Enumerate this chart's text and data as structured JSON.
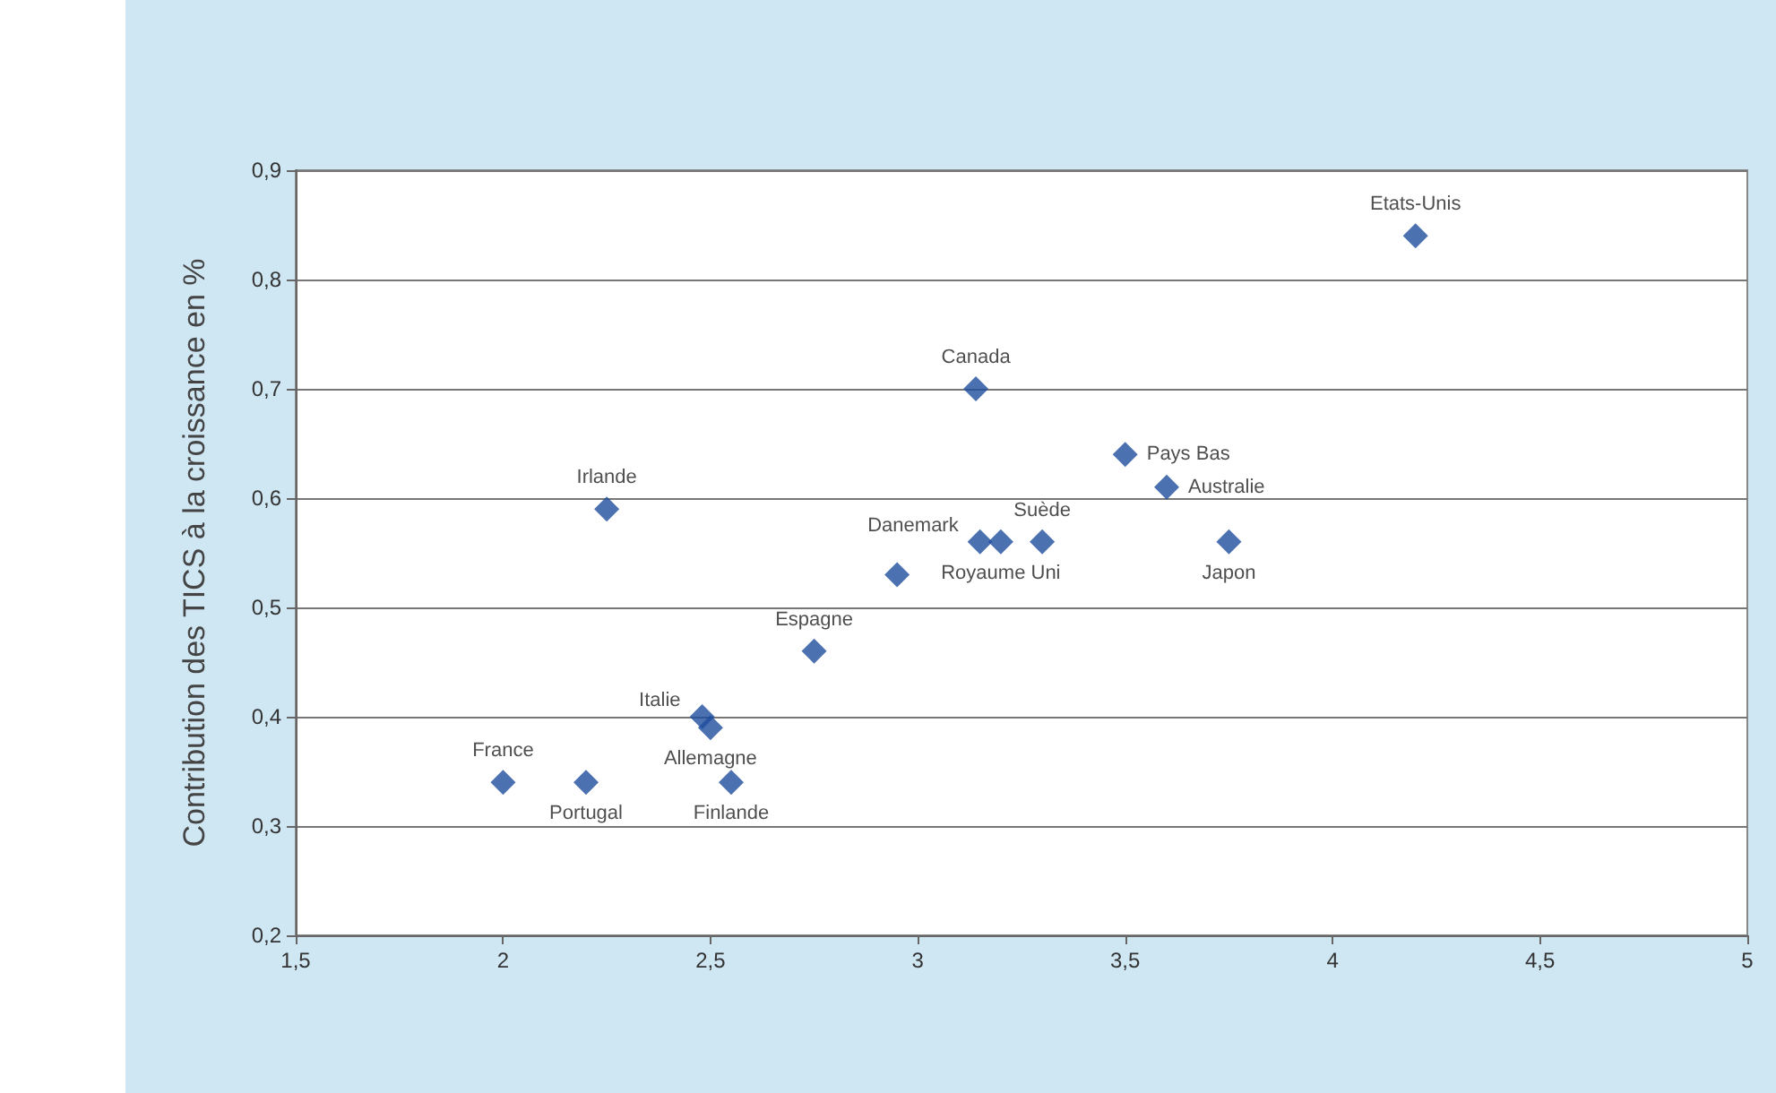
{
  "chart_data": {
    "type": "scatter",
    "ylabel": "Contribution des TICS à la croissance en %",
    "x": [
      4.2,
      3.14,
      3.5,
      3.6,
      3.75,
      2.25,
      3.15,
      3.2,
      3.3,
      2.95,
      2.75,
      2.48,
      2.5,
      2.0,
      2.2,
      2.55
    ],
    "values": [
      0.84,
      0.7,
      0.64,
      0.61,
      0.56,
      0.59,
      0.56,
      0.56,
      0.56,
      0.53,
      0.46,
      0.4,
      0.39,
      0.34,
      0.34,
      0.34
    ],
    "value_labels": [
      "Etats-Unis",
      "Canada",
      "Pays Bas",
      "Australie",
      "Japon",
      "Irlande",
      "Danemark",
      "Royaume Uni",
      "Suède",
      null,
      "Espagne",
      "Italie",
      "Allemagne",
      "France",
      "Portugal",
      "Finlande"
    ],
    "color": "#1f4e9e",
    "marker": "diamond",
    "grid": "y",
    "xlim": [
      1.5,
      5
    ],
    "xticks": [
      {
        "value": 1.5,
        "label": "1,5"
      },
      2,
      {
        "value": 2.5,
        "label": "2,5"
      },
      3,
      {
        "value": 3.5,
        "label": "3,5"
      },
      4,
      {
        "value": 4.5,
        "label": "4,5"
      },
      5
    ],
    "ylim": [
      0.2,
      0.9
    ],
    "yticks": [
      {
        "value": 0.2,
        "label": "0,2"
      },
      {
        "value": 0.3,
        "label": "0,3"
      },
      {
        "value": 0.4,
        "label": "0,4"
      },
      {
        "value": 0.5,
        "label": "0,5"
      },
      {
        "value": 0.6,
        "label": "0,6"
      },
      {
        "value": 0.7,
        "label": "0,7"
      },
      {
        "value": 0.8,
        "label": "0,8"
      },
      {
        "value": 0.9,
        "label": "0,9"
      }
    ]
  }
}
